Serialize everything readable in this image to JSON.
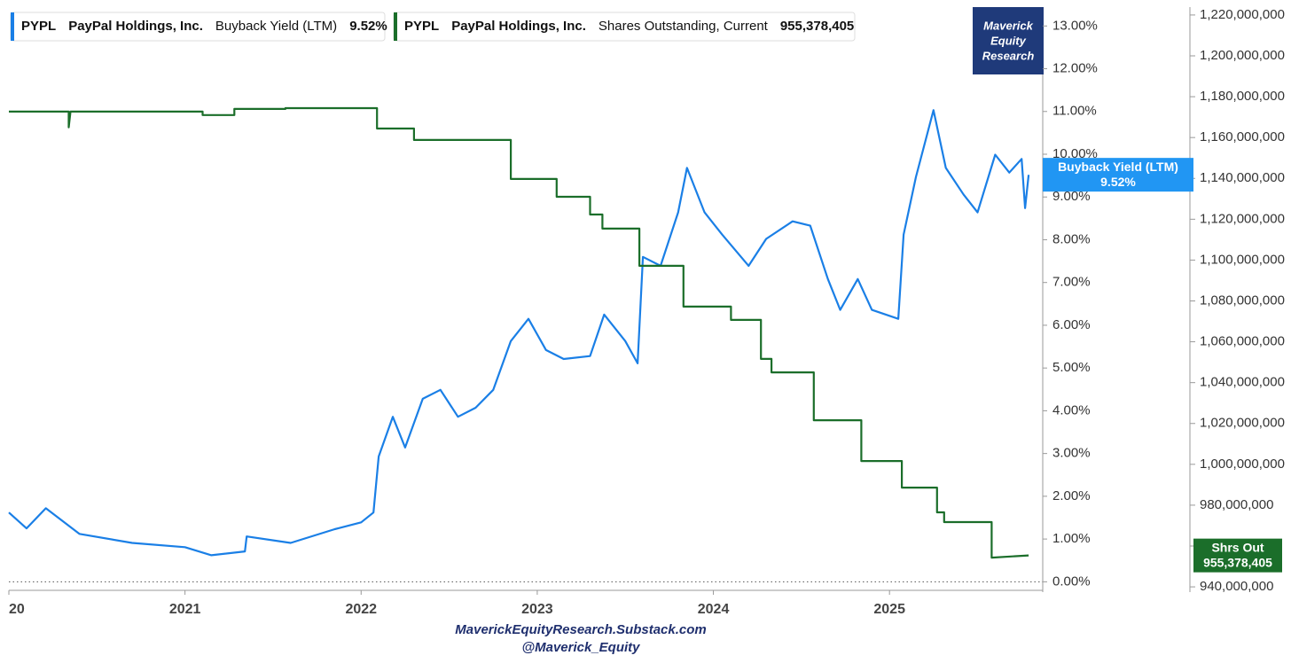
{
  "chart_data": {
    "type": "line",
    "watermark": [
      "Maverick",
      "Equity",
      "Research"
    ],
    "footer": [
      "MaverickEquityResearch.Substack.com",
      "@Maverick_Equity"
    ],
    "xlim": [
      2020,
      2025.87
    ],
    "xticks": [
      {
        "value": 2020,
        "label": "20"
      },
      2021,
      2022,
      2023,
      2024,
      2025
    ],
    "ylim": [
      -0.2,
      13.4
    ],
    "yticks": [
      {
        "value": 0,
        "label": "0.00%"
      },
      {
        "value": 1,
        "label": "1.00%"
      },
      {
        "value": 2,
        "label": "2.00%"
      },
      {
        "value": 3,
        "label": "3.00%"
      },
      {
        "value": 4,
        "label": "4.00%"
      },
      {
        "value": 5,
        "label": "5.00%"
      },
      {
        "value": 6,
        "label": "6.00%"
      },
      {
        "value": 7,
        "label": "7.00%"
      },
      {
        "value": 8,
        "label": "8.00%"
      },
      {
        "value": 9,
        "label": "9.00%"
      },
      {
        "value": 10,
        "label": "10.00%"
      },
      {
        "value": 11,
        "label": "11.00%"
      },
      {
        "value": 12,
        "label": "12.00%"
      },
      {
        "value": 13,
        "label": "13.00%"
      }
    ],
    "y2lim": [
      938300000,
      1223000000
    ],
    "y2ticks": [
      {
        "value": 940000000,
        "label": "940,000,000"
      },
      {
        "value": 960000000,
        "label": "960,000,000"
      },
      {
        "value": 980000000,
        "label": "980,000,000"
      },
      {
        "value": 1000000000,
        "label": "1,000,000,000"
      },
      {
        "value": 1020000000,
        "label": "1,020,000,000"
      },
      {
        "value": 1040000000,
        "label": "1,040,000,000"
      },
      {
        "value": 1060000000,
        "label": "1,060,000,000"
      },
      {
        "value": 1080000000,
        "label": "1,080,000,000"
      },
      {
        "value": 1100000000,
        "label": "1,100,000,000"
      },
      {
        "value": 1120000000,
        "label": "1,120,000,000"
      },
      {
        "value": 1140000000,
        "label": "1,140,000,000"
      },
      {
        "value": 1160000000,
        "label": "1,160,000,000"
      },
      {
        "value": 1180000000,
        "label": "1,180,000,000"
      },
      {
        "value": 1200000000,
        "label": "1,200,000,000"
      },
      {
        "value": 1220000000,
        "label": "1,220,000,000"
      }
    ],
    "series": [
      {
        "name": "Buyback Yield (LTM)",
        "ticker": "PYPL",
        "company": "PayPal Holdings, Inc.",
        "color": "#1a7fe6",
        "callout": "Buyback Yield (LTM)",
        "last_label": "9.52%",
        "x": [
          2020.0,
          2020.1,
          2020.21,
          2020.4,
          2020.7,
          2021.0,
          2021.15,
          2021.34,
          2021.35,
          2021.6,
          2021.85,
          2022.0,
          2022.07,
          2022.1,
          2022.18,
          2022.25,
          2022.35,
          2022.45,
          2022.55,
          2022.65,
          2022.75,
          2022.85,
          2022.95,
          2023.05,
          2023.15,
          2023.3,
          2023.38,
          2023.5,
          2023.57,
          2023.6,
          2023.7,
          2023.8,
          2023.85,
          2023.95,
          2024.05,
          2024.2,
          2024.3,
          2024.45,
          2024.55,
          2024.65,
          2024.72,
          2024.82,
          2024.9,
          2025.05,
          2025.08,
          2025.15,
          2025.25,
          2025.32,
          2025.42,
          2025.5,
          2025.6,
          2025.68,
          2025.75,
          2025.77,
          2025.79
        ],
        "values": [
          1.62,
          1.25,
          1.72,
          1.12,
          0.91,
          0.81,
          0.62,
          0.71,
          1.06,
          0.91,
          1.23,
          1.39,
          1.62,
          2.93,
          3.86,
          3.14,
          4.28,
          4.49,
          3.86,
          4.07,
          4.49,
          5.63,
          6.15,
          5.42,
          5.21,
          5.28,
          6.25,
          5.63,
          5.11,
          7.6,
          7.39,
          8.64,
          9.68,
          8.64,
          8.12,
          7.39,
          8.02,
          8.43,
          8.33,
          7.08,
          6.36,
          7.08,
          6.36,
          6.15,
          8.12,
          9.47,
          11.03,
          9.68,
          9.06,
          8.64,
          9.99,
          9.57,
          9.89,
          8.74,
          9.52
        ]
      },
      {
        "name": "Shares Outstanding, Current",
        "ticker": "PYPL",
        "company": "PayPal Holdings, Inc.",
        "color": "#1b6e2a",
        "axis": "y2",
        "callout": "Shrs Out",
        "last_label": "955,378,405",
        "x": [
          2020.0,
          2020.34,
          2020.34,
          2020.35,
          2021.1,
          2021.1,
          2021.28,
          2021.28,
          2021.57,
          2021.57,
          2022.09,
          2022.09,
          2022.3,
          2022.3,
          2022.85,
          2022.85,
          2023.11,
          2023.11,
          2023.3,
          2023.3,
          2023.37,
          2023.37,
          2023.58,
          2023.58,
          2023.83,
          2023.83,
          2024.1,
          2024.1,
          2024.27,
          2024.27,
          2024.33,
          2024.33,
          2024.57,
          2024.57,
          2024.84,
          2024.84,
          2025.07,
          2025.07,
          2025.27,
          2025.27,
          2025.31,
          2025.31,
          2025.58,
          2025.58,
          2025.79
        ],
        "values": [
          1172700000,
          1172700000,
          1165000000,
          1172700000,
          1172700000,
          1171000000,
          1171000000,
          1174000000,
          1174000000,
          1174400000,
          1174400000,
          1164400000,
          1164400000,
          1158800000,
          1158800000,
          1139700000,
          1139700000,
          1131000000,
          1131000000,
          1122300000,
          1122300000,
          1115400000,
          1115400000,
          1097200000,
          1097200000,
          1077200000,
          1077200000,
          1070700000,
          1070700000,
          1051600000,
          1051600000,
          1045000000,
          1045000000,
          1021600000,
          1021600000,
          1001600000,
          1001600000,
          988600000,
          988600000,
          976500000,
          976500000,
          971700000,
          971700000,
          954300000,
          955378405
        ]
      }
    ]
  }
}
